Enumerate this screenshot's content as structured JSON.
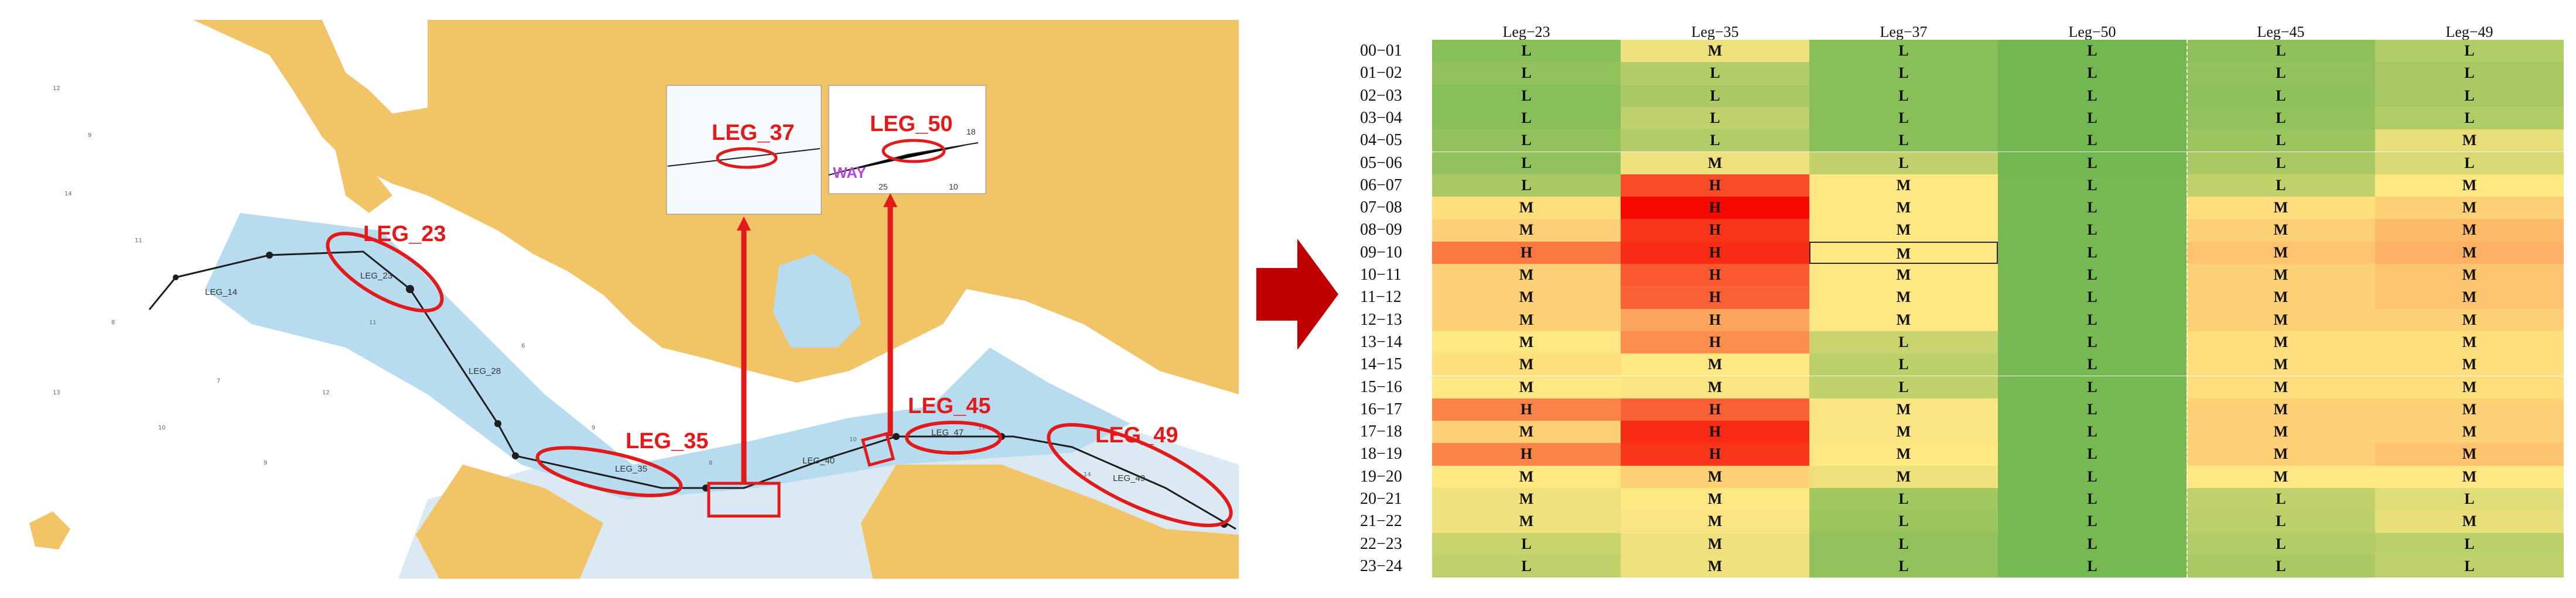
{
  "map": {
    "big_labels": [
      "LEG_23",
      "LEG_35",
      "LEG_45",
      "LEG_49"
    ],
    "inset_labels": [
      "LEG_37",
      "LEG_50"
    ],
    "route_labels": [
      "LEG_14",
      "LEG_23",
      "LEG_28",
      "LEG_35",
      "LEG_40",
      "LEG_47",
      "LEG_49"
    ],
    "misc_text": {
      "way": "WAY",
      "n25": "25",
      "n10": "10",
      "n18": "18"
    },
    "colors": {
      "land": "#f2c468",
      "water_shallow": "#b7dcf0",
      "water_deep": "#ffffff",
      "highlight": "#e31a1a",
      "route": "#1e1e1e"
    }
  },
  "heatmap": {
    "columns": [
      "Leg−23",
      "Leg−35",
      "Leg−37",
      "Leg−50",
      "Leg−45",
      "Leg−49"
    ],
    "rows": [
      "00−01",
      "01−02",
      "02−03",
      "03−04",
      "04−05",
      "05−06",
      "06−07",
      "07−08",
      "08−09",
      "09−10",
      "10−11",
      "11−12",
      "12−13",
      "13−14",
      "14−15",
      "15−16",
      "16−17",
      "17−18",
      "18−19",
      "19−20",
      "20−21",
      "21−22",
      "22−23",
      "23−24"
    ],
    "cells": [
      [
        "L",
        "M",
        "L",
        "L",
        "L",
        "L"
      ],
      [
        "L",
        "L",
        "L",
        "L",
        "L",
        "L"
      ],
      [
        "L",
        "L",
        "L",
        "L",
        "L",
        "L"
      ],
      [
        "L",
        "L",
        "L",
        "L",
        "L",
        "L"
      ],
      [
        "L",
        "L",
        "L",
        "L",
        "L",
        "M"
      ],
      [
        "L",
        "M",
        "L",
        "L",
        "L",
        "L"
      ],
      [
        "L",
        "H",
        "M",
        "L",
        "L",
        "M"
      ],
      [
        "M",
        "H",
        "M",
        "L",
        "M",
        "M"
      ],
      [
        "M",
        "H",
        "M",
        "L",
        "M",
        "M"
      ],
      [
        "H",
        "H",
        "M",
        "L",
        "M",
        "M"
      ],
      [
        "M",
        "H",
        "M",
        "L",
        "M",
        "M"
      ],
      [
        "M",
        "H",
        "M",
        "L",
        "M",
        "M"
      ],
      [
        "M",
        "H",
        "M",
        "L",
        "M",
        "M"
      ],
      [
        "M",
        "H",
        "L",
        "L",
        "M",
        "M"
      ],
      [
        "M",
        "M",
        "L",
        "L",
        "M",
        "M"
      ],
      [
        "M",
        "M",
        "L",
        "L",
        "M",
        "M"
      ],
      [
        "H",
        "H",
        "M",
        "L",
        "M",
        "M"
      ],
      [
        "M",
        "H",
        "M",
        "L",
        "M",
        "M"
      ],
      [
        "H",
        "H",
        "M",
        "L",
        "M",
        "M"
      ],
      [
        "M",
        "M",
        "M",
        "L",
        "M",
        "M"
      ],
      [
        "M",
        "M",
        "L",
        "L",
        "L",
        "L"
      ],
      [
        "M",
        "M",
        "L",
        "L",
        "L",
        "M"
      ],
      [
        "L",
        "M",
        "L",
        "L",
        "L",
        "L"
      ],
      [
        "L",
        "M",
        "L",
        "L",
        "L",
        "L"
      ]
    ],
    "intensity": [
      [
        0.12,
        0.45,
        0.12,
        0.05,
        0.14,
        0.25
      ],
      [
        0.15,
        0.25,
        0.12,
        0.05,
        0.15,
        0.22
      ],
      [
        0.12,
        0.22,
        0.12,
        0.05,
        0.14,
        0.22
      ],
      [
        0.12,
        0.3,
        0.12,
        0.05,
        0.15,
        0.25
      ],
      [
        0.15,
        0.25,
        0.12,
        0.05,
        0.18,
        0.42
      ],
      [
        0.15,
        0.45,
        0.3,
        0.05,
        0.22,
        0.38
      ],
      [
        0.22,
        0.85,
        0.5,
        0.06,
        0.3,
        0.5
      ],
      [
        0.52,
        1.0,
        0.5,
        0.06,
        0.52,
        0.55
      ],
      [
        0.55,
        0.9,
        0.5,
        0.06,
        0.55,
        0.6
      ],
      [
        0.75,
        0.92,
        0.5,
        0.06,
        0.58,
        0.62
      ],
      [
        0.55,
        0.82,
        0.5,
        0.06,
        0.55,
        0.58
      ],
      [
        0.55,
        0.8,
        0.5,
        0.06,
        0.55,
        0.58
      ],
      [
        0.55,
        0.65,
        0.5,
        0.06,
        0.55,
        0.55
      ],
      [
        0.5,
        0.7,
        0.32,
        0.06,
        0.52,
        0.52
      ],
      [
        0.52,
        0.5,
        0.28,
        0.06,
        0.52,
        0.52
      ],
      [
        0.5,
        0.48,
        0.3,
        0.06,
        0.52,
        0.52
      ],
      [
        0.72,
        0.8,
        0.48,
        0.06,
        0.55,
        0.55
      ],
      [
        0.55,
        0.92,
        0.48,
        0.06,
        0.55,
        0.55
      ],
      [
        0.72,
        0.9,
        0.5,
        0.06,
        0.55,
        0.58
      ],
      [
        0.5,
        0.55,
        0.45,
        0.06,
        0.5,
        0.5
      ],
      [
        0.45,
        0.5,
        0.2,
        0.06,
        0.3,
        0.4
      ],
      [
        0.45,
        0.48,
        0.18,
        0.06,
        0.28,
        0.42
      ],
      [
        0.32,
        0.45,
        0.15,
        0.06,
        0.25,
        0.28
      ],
      [
        0.3,
        0.45,
        0.15,
        0.06,
        0.22,
        0.3
      ]
    ],
    "selected_cell": {
      "row": "09−10",
      "column": "Leg−37"
    }
  }
}
